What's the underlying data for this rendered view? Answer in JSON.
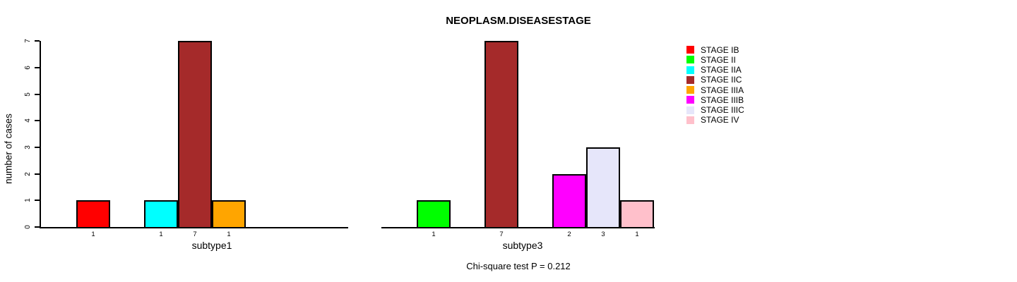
{
  "title": "NEOPLASM.DISEASESTAGE",
  "y_axis": {
    "label": "number of cases",
    "ticks": [
      "0",
      "1",
      "2",
      "3",
      "4",
      "5",
      "6",
      "7"
    ]
  },
  "footer": "Chi-square test P = 0.212",
  "legend": {
    "items": [
      {
        "label": "STAGE IB",
        "color": "#FF0000"
      },
      {
        "label": "STAGE II",
        "color": "#00FF00"
      },
      {
        "label": "STAGE IIA",
        "color": "#00FFFF"
      },
      {
        "label": "STAGE IIC",
        "color": "#A52A2A"
      },
      {
        "label": "STAGE IIIA",
        "color": "#FFA500"
      },
      {
        "label": "STAGE IIIB",
        "color": "#FF00FF"
      },
      {
        "label": "STAGE IIIC",
        "color": "#E6E6FA"
      },
      {
        "label": "STAGE IV",
        "color": "#FFC0CB"
      }
    ]
  },
  "chart_data": {
    "type": "bar",
    "title": "NEOPLASM.DISEASESTAGE",
    "ylabel": "number of cases",
    "ylim": [
      0,
      7
    ],
    "yticks": [
      0,
      1,
      2,
      3,
      4,
      5,
      6,
      7
    ],
    "grid": false,
    "legend_position": "right",
    "annotation": "Chi-square test P = 0.212",
    "panels": [
      {
        "xlabel": "subtype1",
        "bars": [
          {
            "stage": "STAGE IB",
            "value": 1,
            "count_label": "1",
            "color": "#FF0000",
            "slot": 0
          },
          {
            "stage": "STAGE IIA",
            "value": 1,
            "count_label": "1",
            "color": "#00FFFF",
            "slot": 2
          },
          {
            "stage": "STAGE IIC",
            "value": 7,
            "count_label": "7",
            "color": "#A52A2A",
            "slot": 3
          },
          {
            "stage": "STAGE IIIA",
            "value": 1,
            "count_label": "1",
            "color": "#FFA500",
            "slot": 4
          }
        ]
      },
      {
        "xlabel": "subtype3",
        "bars": [
          {
            "stage": "STAGE II",
            "value": 1,
            "count_label": "1",
            "color": "#00FF00",
            "slot": 0
          },
          {
            "stage": "STAGE IIC",
            "value": 7,
            "count_label": "7",
            "color": "#A52A2A",
            "slot": 2
          },
          {
            "stage": "STAGE IIIB",
            "value": 2,
            "count_label": "2",
            "color": "#FF00FF",
            "slot": 4
          },
          {
            "stage": "STAGE IIIC",
            "value": 3,
            "count_label": "3",
            "color": "#E6E6FA",
            "slot": 5
          },
          {
            "stage": "STAGE IV",
            "value": 1,
            "count_label": "1",
            "color": "#FFC0CB",
            "slot": 6
          }
        ]
      }
    ]
  }
}
